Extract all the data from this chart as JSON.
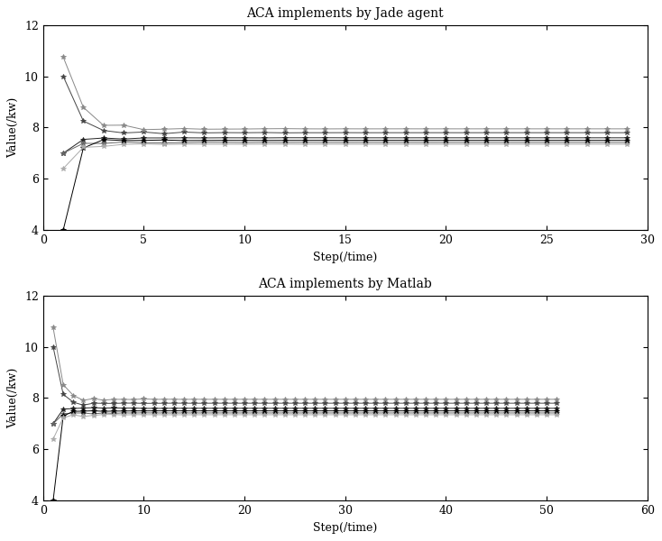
{
  "title1": "ACA implements by Jade agent",
  "title2": "ACA implements by Matlab",
  "xlabel": "Step(/time)",
  "ylabel": "Value(/kw)",
  "ylim": [
    4,
    12
  ],
  "yticks": [
    4,
    6,
    8,
    10,
    12
  ],
  "xlim1": [
    0,
    30
  ],
  "xticks1": [
    0,
    5,
    10,
    15,
    20,
    25,
    30
  ],
  "xlim2": [
    0,
    60
  ],
  "xticks2": [
    0,
    10,
    20,
    30,
    40,
    50,
    60
  ],
  "n_steps1": 29,
  "n_steps2": 51,
  "lines1": [
    {
      "start": 10.0,
      "converge": 7.8,
      "color": "#444444",
      "decay": 1.5,
      "noise": 0.08
    },
    {
      "start": 10.75,
      "converge": 7.95,
      "color": "#888888",
      "decay": 1.2,
      "noise": 0.1
    },
    {
      "start": 7.0,
      "converge": 7.6,
      "color": "#222222",
      "decay": 2.0,
      "noise": 0.06
    },
    {
      "start": 7.0,
      "converge": 7.42,
      "color": "#666666",
      "decay": 2.0,
      "noise": 0.06
    },
    {
      "start": 4.0,
      "converge": 7.5,
      "color": "#000000",
      "decay": 2.5,
      "noise": 0.04
    },
    {
      "start": 6.4,
      "converge": 7.35,
      "color": "#aaaaaa",
      "decay": 1.8,
      "noise": 0.07
    }
  ],
  "lines2": [
    {
      "start": 10.0,
      "converge": 7.8,
      "color": "#444444",
      "decay": 1.8,
      "noise": 0.08
    },
    {
      "start": 10.75,
      "converge": 7.95,
      "color": "#888888",
      "decay": 1.5,
      "noise": 0.1
    },
    {
      "start": 7.0,
      "converge": 7.6,
      "color": "#222222",
      "decay": 2.2,
      "noise": 0.06
    },
    {
      "start": 7.0,
      "converge": 7.42,
      "color": "#666666",
      "decay": 2.2,
      "noise": 0.06
    },
    {
      "start": 4.0,
      "converge": 7.5,
      "color": "#000000",
      "decay": 2.8,
      "noise": 0.04
    },
    {
      "start": 6.4,
      "converge": 7.35,
      "color": "#aaaaaa",
      "decay": 2.0,
      "noise": 0.07
    }
  ],
  "marker": "*",
  "markersize": 4,
  "linewidth": 0.7,
  "title_fontsize": 10,
  "label_fontsize": 9,
  "tick_fontsize": 9
}
